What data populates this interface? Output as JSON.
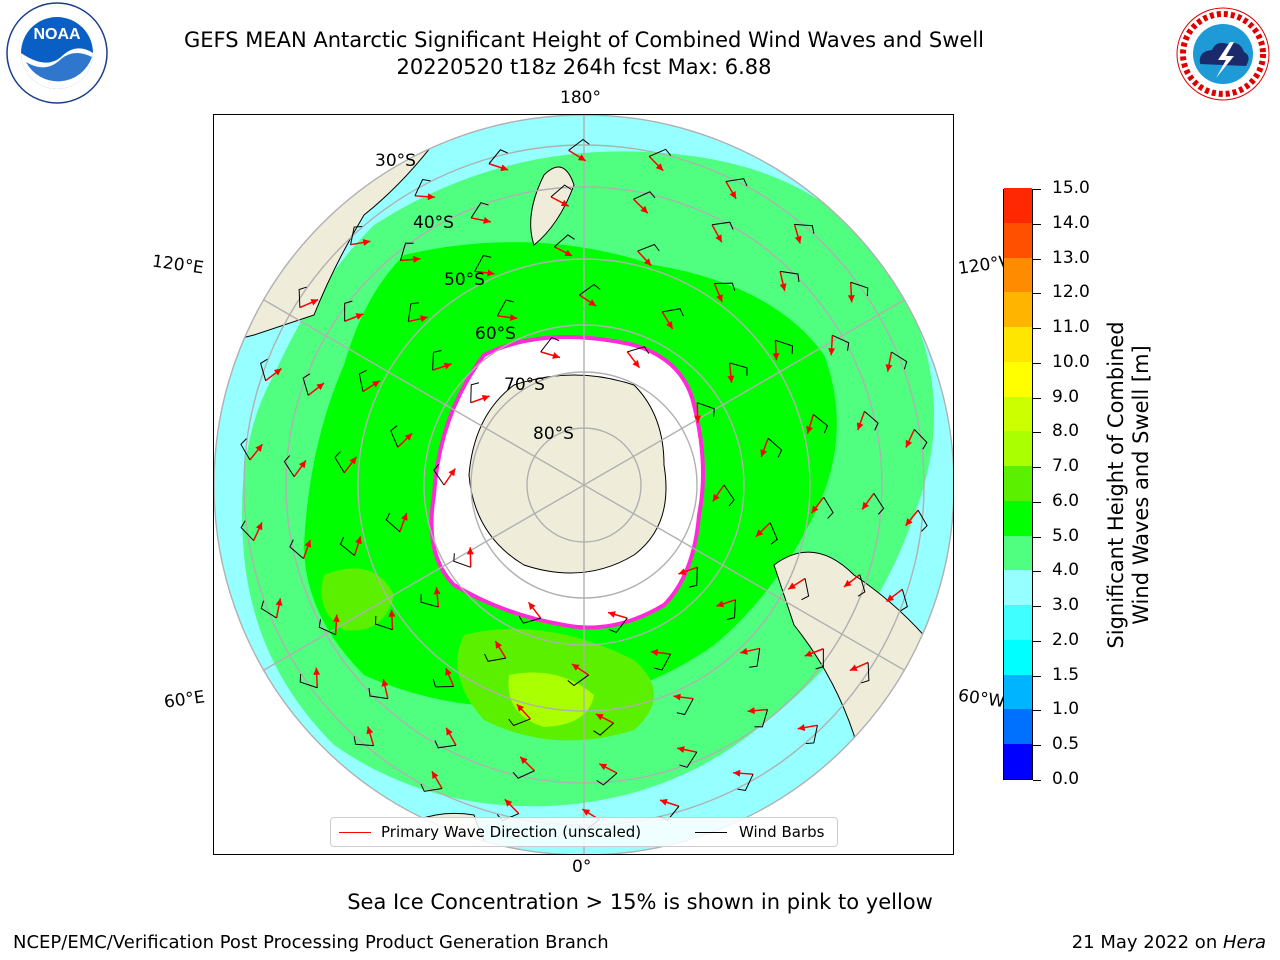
{
  "header": {
    "title_line1": "GEFS MEAN Antarctic Significant Height of Combined Wind Waves and Swell",
    "title_line2": "20220520 t18z 264h fcst   Max: 6.88"
  },
  "logos": {
    "left": "noaa-logo",
    "right": "national-weather-service-logo",
    "left_text": "NOAA",
    "right_text": "NATIONAL WEATHER SERVICE"
  },
  "map": {
    "projection": "south-polar-stereographic",
    "longitude_labels": {
      "top": "180°",
      "bottom": "0°",
      "left_upper": "120°E",
      "left_lower": "60°E",
      "right_upper": "120°W",
      "right_lower": "60°W"
    },
    "latitude_labels": [
      "30°S",
      "40°S",
      "50°S",
      "60°S",
      "70°S",
      "80°S"
    ],
    "colors": {
      "land": "#efedda",
      "ice": "#ffffff",
      "sea_ice_edge": "#ff2bd6",
      "wave_arrow": "#ff0000",
      "wind_barb": "#000000",
      "grid": "#b0b0b0"
    }
  },
  "legend": {
    "wave_label": "Primary Wave Direction (unscaled)",
    "barb_label": "Wind Barbs"
  },
  "colorbar": {
    "title_line1": "Significant Height of Combined",
    "title_line2": "Wind Waves and Swell [m]",
    "ticks": [
      "0.0",
      "0.5",
      "1.0",
      "1.5",
      "2.0",
      "3.0",
      "4.0",
      "5.0",
      "6.0",
      "7.0",
      "8.0",
      "9.0",
      "10.0",
      "11.0",
      "12.0",
      "13.0",
      "14.0",
      "15.0"
    ],
    "colors": [
      "#0000ff",
      "#0070ff",
      "#00b4ff",
      "#00ffff",
      "#40ffff",
      "#96ffff",
      "#50ff80",
      "#00ff00",
      "#5af000",
      "#aaff00",
      "#ccff00",
      "#ffff00",
      "#ffe600",
      "#ffb400",
      "#ff8c00",
      "#ff5000",
      "#ff2800",
      "#ff0000"
    ]
  },
  "footer": {
    "note": "Sea Ice Concentration > 15% is shown in pink to yellow",
    "credit": "NCEP/EMC/Verification Post Processing Product Generation Branch",
    "date_prefix": "21 May 2022 on ",
    "date_machine": "Hera"
  }
}
